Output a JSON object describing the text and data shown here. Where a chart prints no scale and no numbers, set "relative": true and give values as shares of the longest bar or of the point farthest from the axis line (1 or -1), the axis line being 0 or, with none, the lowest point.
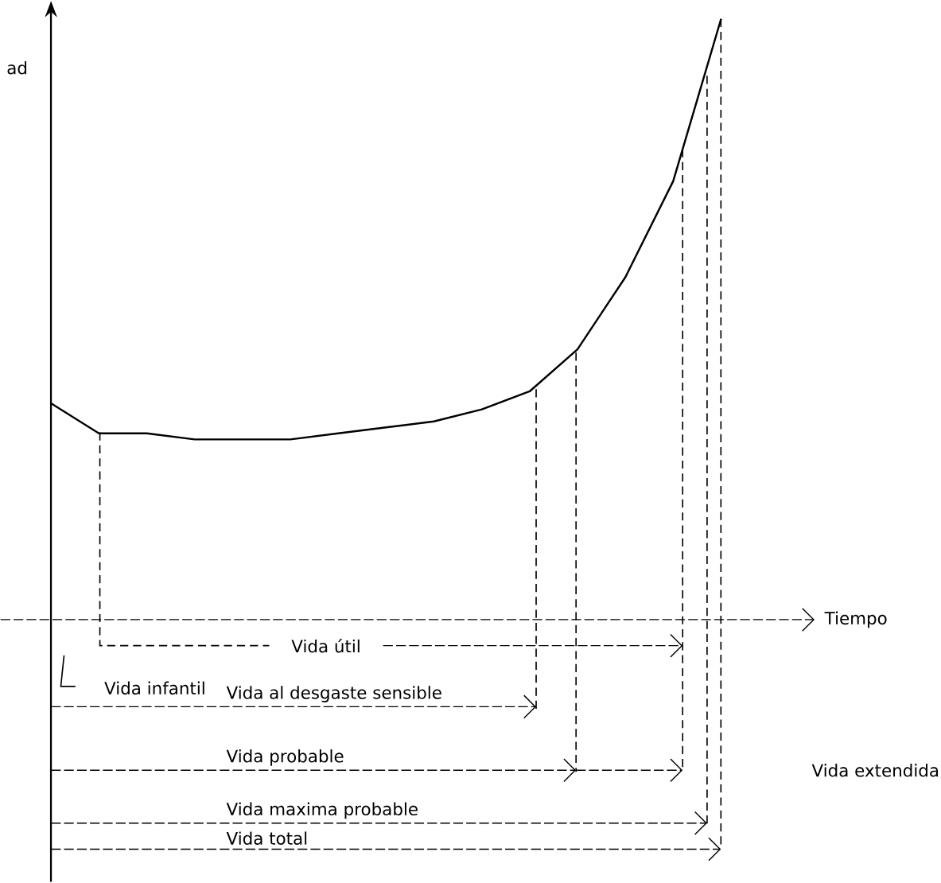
{
  "chart_data": {
    "type": "line",
    "relative": true,
    "color": "#000000",
    "xlabel": "Tiempo",
    "ylabel": "ad",
    "categories": [
      null,
      null,
      null,
      null,
      null,
      null,
      null,
      null,
      null,
      null,
      null,
      null,
      null,
      null,
      null
    ],
    "values": [
      0.36,
      0.31,
      0.31,
      0.3,
      0.3,
      0.3,
      0.31,
      0.32,
      0.33,
      0.35,
      0.38,
      0.45,
      0.57,
      0.73,
      1
    ],
    "annotations": [
      "Vida útil",
      "Vida infantil",
      "Vida al desgaste sensible",
      "Vida probable",
      "Vida maxima probable",
      "Vida total",
      "Vida extendida"
    ]
  }
}
